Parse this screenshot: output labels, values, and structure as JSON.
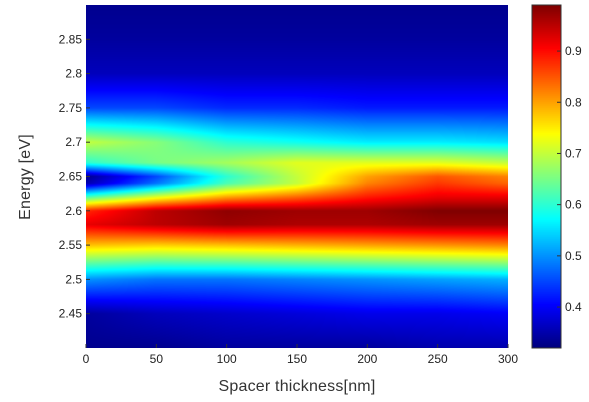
{
  "chart_data": {
    "type": "heatmap",
    "xlabel": "Spacer thickness[nm]",
    "ylabel": "Energy [eV]",
    "xlim": [
      0,
      300
    ],
    "ylim": [
      2.4,
      2.9
    ],
    "x_ticks": [
      0,
      50,
      100,
      150,
      200,
      250,
      300
    ],
    "y_ticks": [
      2.45,
      2.5,
      2.55,
      2.6,
      2.65,
      2.7,
      2.75,
      2.8,
      2.85
    ],
    "x_tick_labels": [
      "0",
      "50",
      "100",
      "150",
      "200",
      "250",
      "300"
    ],
    "y_tick_labels": [
      "2.45",
      "2.5",
      "2.55",
      "2.6",
      "2.65",
      "2.7",
      "2.75",
      "2.8",
      "2.85"
    ],
    "colorbar": {
      "colormap": "jet",
      "range": [
        0.32,
        0.99
      ],
      "ticks": [
        0.4,
        0.5,
        0.6,
        0.7,
        0.8,
        0.9
      ],
      "tick_labels": [
        "0.4",
        "0.5",
        "0.6",
        "0.7",
        "0.8",
        "0.9"
      ]
    },
    "x": [
      0,
      50,
      100,
      150,
      200,
      250,
      300
    ],
    "y": [
      2.4,
      2.45,
      2.5,
      2.55,
      2.58,
      2.6,
      2.62,
      2.64,
      2.65,
      2.67,
      2.7,
      2.75,
      2.8,
      2.85,
      2.9
    ],
    "z": [
      [
        0.33,
        0.33,
        0.34,
        0.34,
        0.34,
        0.35,
        0.35
      ],
      [
        0.34,
        0.36,
        0.37,
        0.38,
        0.39,
        0.39,
        0.4
      ],
      [
        0.5,
        0.48,
        0.48,
        0.49,
        0.5,
        0.51,
        0.52
      ],
      [
        0.78,
        0.77,
        0.78,
        0.79,
        0.8,
        0.81,
        0.82
      ],
      [
        0.92,
        0.95,
        0.97,
        0.96,
        0.96,
        0.97,
        0.97
      ],
      [
        0.88,
        0.95,
        0.98,
        0.97,
        0.97,
        0.99,
        0.99
      ],
      [
        0.62,
        0.72,
        0.8,
        0.84,
        0.89,
        0.92,
        0.92
      ],
      [
        0.35,
        0.48,
        0.62,
        0.7,
        0.82,
        0.87,
        0.84
      ],
      [
        0.33,
        0.45,
        0.6,
        0.7,
        0.8,
        0.85,
        0.82
      ],
      [
        0.6,
        0.65,
        0.68,
        0.72,
        0.72,
        0.72,
        0.7
      ],
      [
        0.7,
        0.66,
        0.6,
        0.58,
        0.56,
        0.56,
        0.55
      ],
      [
        0.45,
        0.45,
        0.43,
        0.43,
        0.42,
        0.42,
        0.42
      ],
      [
        0.36,
        0.36,
        0.36,
        0.36,
        0.36,
        0.36,
        0.36
      ],
      [
        0.34,
        0.34,
        0.34,
        0.34,
        0.34,
        0.34,
        0.34
      ],
      [
        0.33,
        0.33,
        0.33,
        0.33,
        0.33,
        0.33,
        0.33
      ]
    ],
    "grid": false,
    "legend": "none"
  }
}
